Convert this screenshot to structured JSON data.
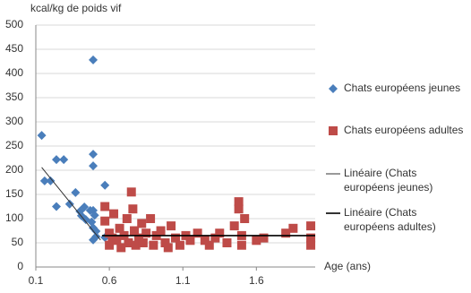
{
  "chart_data": {
    "type": "scatter",
    "y_label": "kcal/kg de poids vif",
    "x_label": "Age (ans)",
    "xlim": [
      0.1,
      2.0
    ],
    "xticks": [
      0.1,
      0.6,
      {
        "value": 1.1,
        "label": "1.1"
      },
      1.6
    ],
    "ylim": [
      0,
      500
    ],
    "yticks": [
      0,
      50,
      100,
      150,
      200,
      250,
      300,
      350,
      400,
      450,
      500
    ],
    "grid": true,
    "series": [
      {
        "name": "Chats européens jeunes",
        "color": "#4a7ebb",
        "marker": "diamond",
        "x": [
          0.14,
          0.16,
          0.2,
          0.24,
          0.24,
          0.29,
          0.33,
          0.37,
          0.4,
          0.41,
          0.43,
          0.44,
          0.47,
          0.48,
          0.49,
          0.49,
          0.49,
          0.49,
          0.49,
          0.49,
          0.5,
          0.51,
          0.51,
          0.57,
          0.57
        ],
        "values": [
          272,
          178,
          178,
          222,
          125,
          222,
          130,
          154,
          115,
          106,
          124,
          98,
          117,
          93,
          428,
          233,
          209,
          117,
          81,
          56,
          107,
          74,
          63,
          169,
          61
        ]
      },
      {
        "name": "Chats européens adultes",
        "color": "#be4b48",
        "marker": "square",
        "x": [
          0.57,
          0.57,
          0.6,
          0.6,
          0.62,
          0.63,
          0.65,
          0.67,
          0.68,
          0.7,
          0.72,
          0.73,
          0.75,
          0.76,
          0.77,
          0.78,
          0.8,
          0.82,
          0.83,
          0.85,
          0.88,
          0.9,
          0.92,
          0.95,
          0.98,
          1.0,
          1.02,
          1.05,
          1.08,
          1.12,
          1.15,
          1.2,
          1.25,
          1.28,
          1.32,
          1.35,
          1.4,
          1.45,
          1.48,
          1.48,
          1.5,
          1.5,
          1.52,
          1.6,
          1.65,
          1.8,
          1.85,
          1.97,
          1.97,
          1.97
        ],
        "values": [
          125,
          95,
          70,
          45,
          60,
          110,
          55,
          80,
          40,
          65,
          100,
          50,
          155,
          120,
          75,
          45,
          60,
          90,
          50,
          70,
          100,
          45,
          65,
          75,
          50,
          40,
          85,
          60,
          45,
          65,
          55,
          70,
          55,
          45,
          60,
          70,
          50,
          85,
          120,
          135,
          65,
          45,
          100,
          55,
          60,
          70,
          80,
          85,
          60,
          45
        ]
      },
      {
        "name": "Linéaire (Chats européens jeunes)",
        "color": "#333333",
        "marker": "line",
        "width": 1,
        "x": [
          0.14,
          0.54
        ],
        "values": [
          206,
          56
        ]
      },
      {
        "name": "Linéaire (Chats européens adultes)",
        "color": "#000000",
        "marker": "line",
        "width": 1.6,
        "x": [
          0.55,
          2.0
        ],
        "values": [
          65,
          65
        ]
      }
    ]
  }
}
